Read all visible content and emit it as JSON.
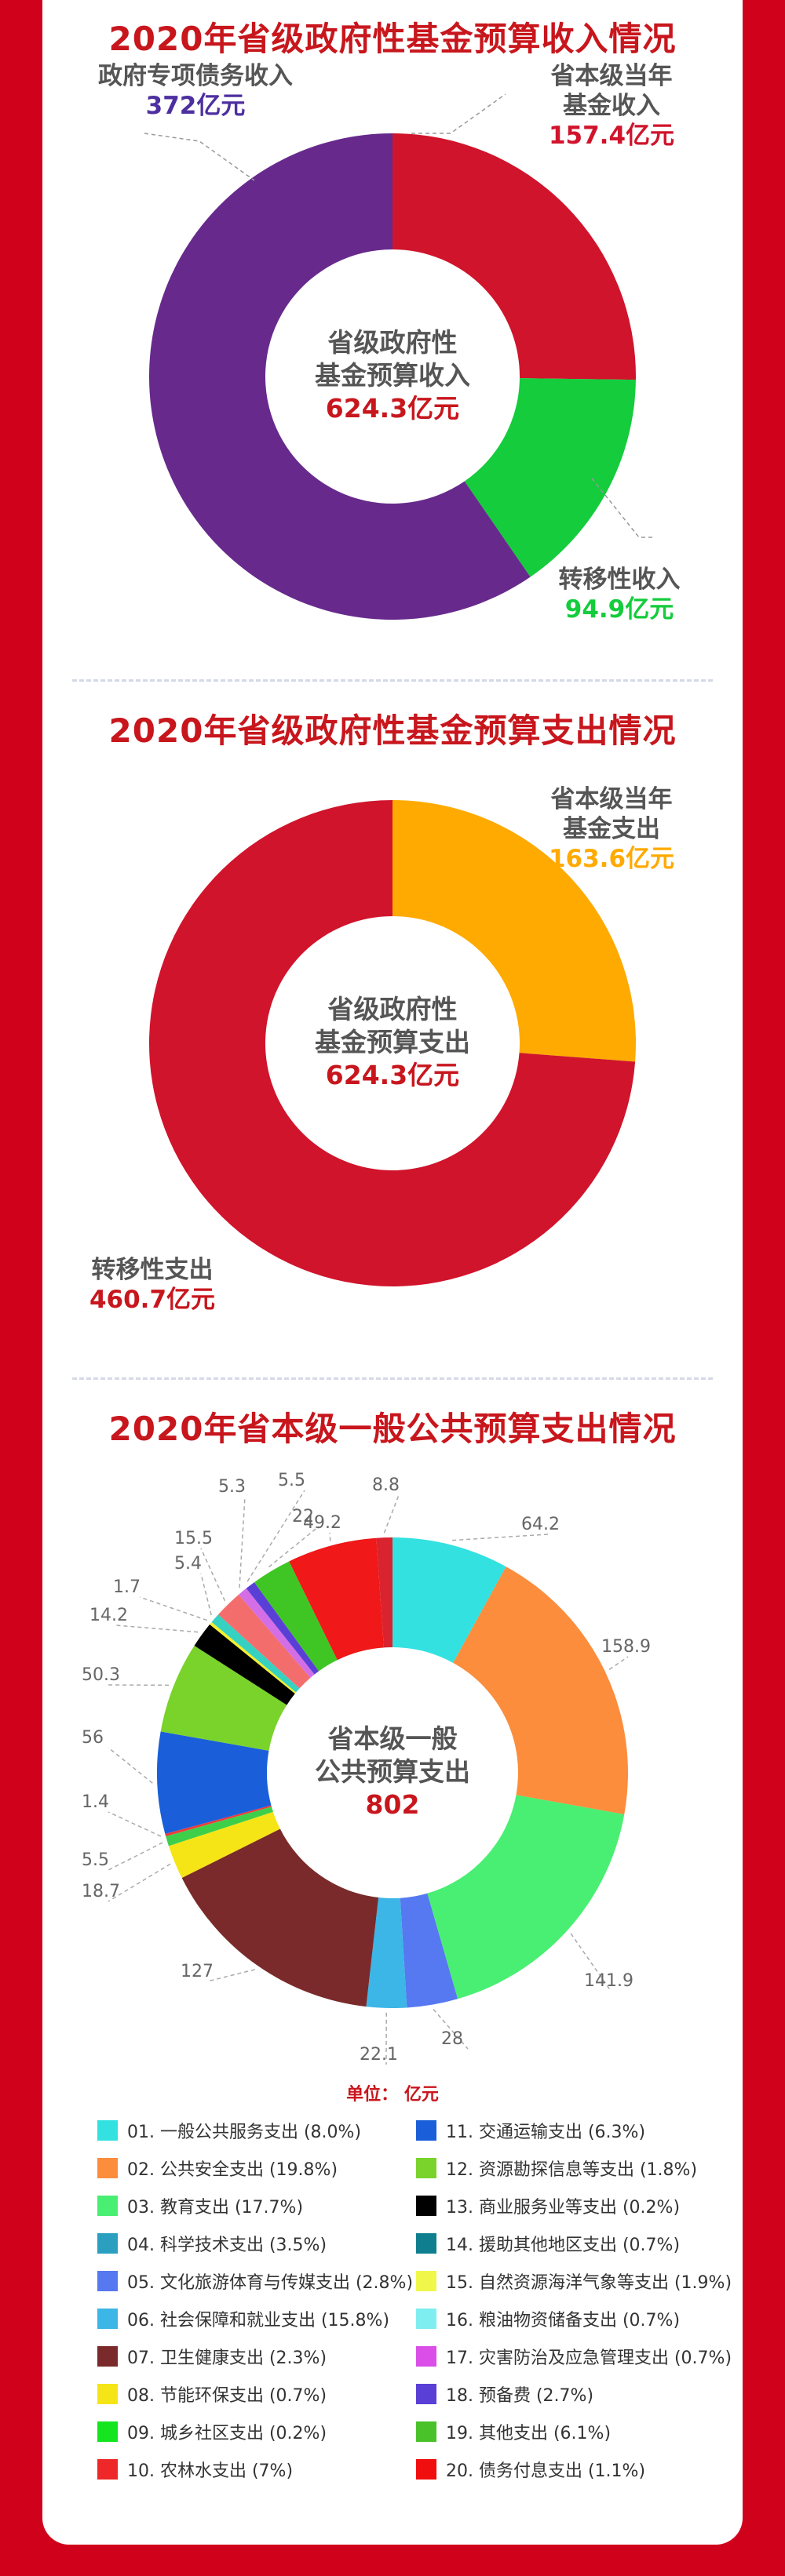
{
  "chart_data": [
    {
      "type": "pie",
      "title": "2020年省级政府性基金预算收入情况",
      "center_label": [
        "省级政府性",
        "基金预算收入",
        "624.3亿元"
      ],
      "slices": [
        {
          "label": "省本级当年基金收入",
          "name_lines": [
            "省本级当年",
            "基金收入"
          ],
          "value": 157.4,
          "value_label": "157.4亿元",
          "color": "#d0142c"
        },
        {
          "label": "转移性收入",
          "name_lines": [
            "转移性收入"
          ],
          "value": 94.9,
          "value_label": "94.9亿元",
          "color": "#14cc3c"
        },
        {
          "label": "政府专项债务收入",
          "name_lines": [
            "政府专项债务收入"
          ],
          "value": 372,
          "value_label": "372亿元",
          "color": "#672a8c"
        }
      ]
    },
    {
      "type": "pie",
      "title": "2020年省级政府性基金预算支出情况",
      "center_label": [
        "省级政府性",
        "基金预算支出",
        "624.3亿元"
      ],
      "slices": [
        {
          "label": "省本级当年基金支出",
          "name_lines": [
            "省本级当年",
            "基金支出"
          ],
          "value": 163.6,
          "value_label": "163.6亿元",
          "color": "#ffaa00"
        },
        {
          "label": "转移性支出",
          "name_lines": [
            "转移性支出"
          ],
          "value": 460.7,
          "value_label": "460.7亿元",
          "color": "#d0142c"
        }
      ]
    },
    {
      "type": "pie",
      "title": "2020年省本级一般公共预算支出情况",
      "center_label": [
        "省本级一般",
        "公共预算支出",
        "802"
      ],
      "unit_label": "单位：  亿元",
      "slices": [
        {
          "label": "01. 一般公共服务支出 (8.0%)",
          "value": 64.2,
          "value_label": "64.2",
          "color": "#33e1e1"
        },
        {
          "label": "02. 公共安全支出 (19.8%)",
          "value": 158.9,
          "value_label": "158.9",
          "color": "#fb8d3d"
        },
        {
          "label": "03. 教育支出 (17.7%)",
          "value": 141.9,
          "value_label": "141.9",
          "color": "#49ef72"
        },
        {
          "label": "04. 科学技术支出 (3.5%)",
          "value": 28,
          "value_label": "28",
          "color": "#5678f0"
        },
        {
          "label": "05. 文化旅游体育与传媒支出 (2.8%)",
          "value": 22.1,
          "value_label": "22.1",
          "color": "#3bb6e6"
        },
        {
          "label": "06. 社会保障和就业支出 (15.8%)",
          "value": 127,
          "value_label": "127",
          "color": "#7a2a2a"
        },
        {
          "label": "07. 卫生健康支出 (2.3%)",
          "value": 18.7,
          "value_label": "18.7",
          "color": "#f6e516"
        },
        {
          "label": "08. 节能环保支出 (0.7%)",
          "value": 5.5,
          "value_label": "5.5",
          "color": "#3ecf4a"
        },
        {
          "label": "09. 城乡社区支出 (0.2%)",
          "value": 1.4,
          "value_label": "1.4",
          "color": "#ee3b3b"
        },
        {
          "label": "10. 农林水支出 (7%)",
          "value": 56,
          "value_label": "56",
          "color": "#1a5fd9"
        },
        {
          "label": "11. 交通运输支出 (6.3%)",
          "value": 50.3,
          "value_label": "50.3",
          "color": "#79d32b"
        },
        {
          "label": "12. 资源勘探信息等支出 (1.8%)",
          "value": 14.2,
          "value_label": "14.2",
          "color": "#000000"
        },
        {
          "label": "13. 商业服务业等支出 (0.2%)",
          "value": 1.7,
          "value_label": "1.7",
          "color": "#f4ef2b"
        },
        {
          "label": "14. 援助其他地区支出 (0.7%)",
          "value": 5.4,
          "value_label": "5.4",
          "color": "#36d1c0"
        },
        {
          "label": "15. 自然资源海洋气象等支出 (1.9%)",
          "value": 15.5,
          "value_label": "15.5",
          "color": "#f46d6d"
        },
        {
          "label": "16. 粮油物资储备支出 (0.7%)",
          "value": 5.3,
          "value_label": "5.3",
          "color": "#d36ee6"
        },
        {
          "label": "17. 灾害防治及应急管理支出 (0.7%)",
          "value": 5.5,
          "value_label": "5.5",
          "color": "#5a3fd6"
        },
        {
          "label": "18. 预备费 (2.7%)",
          "value": 22,
          "value_label": "22",
          "color": "#3fc624"
        },
        {
          "label": "19. 其他支出 (6.1%)",
          "value": 49.2,
          "value_label": "49.2",
          "color": "#f01818"
        },
        {
          "label": "20. 债务付息支出 (1.1%)",
          "value": 8.8,
          "value_label": "8.8",
          "color": "#d9232e"
        }
      ],
      "legend": [
        {
          "label": "01. 一般公共服务支出 (8.0%)",
          "color": "#33e1e1"
        },
        {
          "label": "02. 公共安全支出 (19.8%)",
          "color": "#fb8d3d"
        },
        {
          "label": "03. 教育支出 (17.7%)",
          "color": "#49ef72"
        },
        {
          "label": "04. 科学技术支出 (3.5%)",
          "color": "#2b9fc0"
        },
        {
          "label": "05. 文化旅游体育与传媒支出 (2.8%)",
          "color": "#5678f0"
        },
        {
          "label": "06. 社会保障和就业支出 (15.8%)",
          "color": "#3bb6e6"
        },
        {
          "label": "07. 卫生健康支出 (2.3%)",
          "color": "#7a2a2a"
        },
        {
          "label": "08. 节能环保支出 (0.7%)",
          "color": "#f6e516"
        },
        {
          "label": "09. 城乡社区支出 (0.2%)",
          "color": "#14e51e"
        },
        {
          "label": "10. 农林水支出 (7%)",
          "color": "#ee2828"
        },
        {
          "label": "11. 交通运输支出 (6.3%)",
          "color": "#1a5fd9"
        },
        {
          "label": "12. 资源勘探信息等支出 (1.8%)",
          "color": "#79d32b"
        },
        {
          "label": "13. 商业服务业等支出 (0.2%)",
          "color": "#000000"
        },
        {
          "label": "14. 援助其他地区支出 (0.7%)",
          "color": "#0f7f8f"
        },
        {
          "label": "15. 自然资源海洋气象等支出 (1.9%)",
          "color": "#f0f74a"
        },
        {
          "label": "16. 粮油物资储备支出 (0.7%)",
          "color": "#7eeef0"
        },
        {
          "label": "17. 灾害防治及应急管理支出 (0.7%)",
          "color": "#d94fe8"
        },
        {
          "label": "18. 预备费 (2.7%)",
          "color": "#5a3fd6"
        },
        {
          "label": "19. 其他支出 (6.1%)",
          "color": "#49c22a"
        },
        {
          "label": "20. 债务付息支出 (1.1%)",
          "color": "#f00e0e"
        }
      ]
    }
  ]
}
